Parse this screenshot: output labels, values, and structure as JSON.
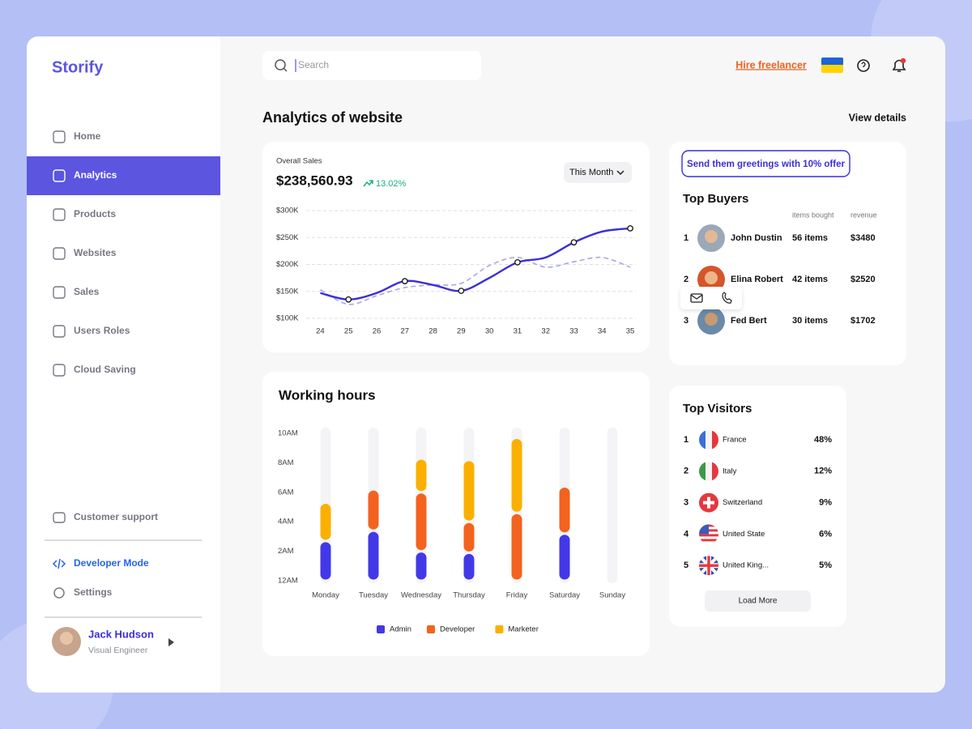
{
  "app": {
    "brand": "Storify"
  },
  "sidebar": {
    "nav": [
      "Home",
      "Analytics",
      "Products",
      "Websites",
      "Sales",
      "Users Roles",
      "Cloud Saving"
    ],
    "support": "Customer support",
    "developer_mode": "Developer Mode",
    "settings": "Settings",
    "user": {
      "name": "Jack Hudson",
      "role": "Visual Engineer"
    }
  },
  "header": {
    "search_placeholder": "Search",
    "hire": "Hire freelancer"
  },
  "page": {
    "title": "Analytics of website",
    "view_details": "View details"
  },
  "sales": {
    "label": "Overall Sales",
    "total": "$238,560.93",
    "change": "13.02%",
    "period": "This Month"
  },
  "chart_data": [
    {
      "type": "line",
      "x": [
        24,
        25,
        26,
        27,
        28,
        29,
        30,
        31,
        32,
        33,
        34,
        35
      ],
      "xlim": [
        23.7,
        35.2
      ],
      "ylim": [
        100000,
        300000
      ],
      "yticks": [
        {
          "value": 100000,
          "label": "$100K"
        },
        {
          "value": 150000,
          "label": "$150K"
        },
        {
          "value": 200000,
          "label": "$200K"
        },
        {
          "value": 250000,
          "label": "$250K"
        },
        {
          "value": 300000,
          "label": "$300K"
        }
      ],
      "grid": true,
      "series": [
        {
          "color": "#3b2fd9",
          "values": [
            147000,
            135000,
            147000,
            169000,
            162000,
            151000,
            175000,
            204000,
            213000,
            241000,
            261000,
            267000
          ]
        },
        {
          "color": "#a9a6e6",
          "dashed": true,
          "values": [
            153000,
            126000,
            142000,
            157000,
            162000,
            165000,
            198000,
            213000,
            195000,
            205000,
            213000,
            195000
          ]
        }
      ]
    },
    {
      "type": "bar",
      "stacked": true,
      "title": "Working hours",
      "categories": [
        "Monday",
        "Tuesday",
        "Wednesday",
        "Thursday",
        "Friday",
        "Saturday",
        "Sunday"
      ],
      "ylim": [
        0,
        10
      ],
      "yticks": [
        {
          "value": 0,
          "label": "12AM"
        },
        {
          "value": 2,
          "label": "2AM"
        },
        {
          "value": 4,
          "label": "4AM"
        },
        {
          "value": 6,
          "label": "6AM"
        },
        {
          "value": 8,
          "label": "8AM"
        },
        {
          "value": 10,
          "label": "10AM"
        }
      ],
      "series": [
        {
          "name": "Admin",
          "color": "#4338e8",
          "values": [
            2.7,
            3.4,
            2.0,
            1.9,
            0,
            3.2,
            0
          ]
        },
        {
          "name": "Developer",
          "color": "#f4621f",
          "values": [
            0,
            2.8,
            4.0,
            2.1,
            4.6,
            3.2,
            0
          ]
        },
        {
          "name": "Marketer",
          "color": "#fbb000",
          "values": [
            2.6,
            0,
            2.3,
            4.2,
            5.1,
            0,
            0
          ]
        }
      ]
    }
  ],
  "top_buyers": {
    "button": "Send them greetings with 10% offer",
    "title": "Top Buyers",
    "columns": [
      "items bought",
      "revenue"
    ],
    "rows": [
      [
        "1",
        "John Dustin",
        "56 items",
        "$3480"
      ],
      [
        "2",
        "Elina Robert",
        "42 items",
        "$2520"
      ],
      [
        "3",
        "Fed Bert",
        "30 items",
        "$1702"
      ]
    ]
  },
  "top_visitors": {
    "title": "Top Visitors",
    "rows": [
      [
        "1",
        "France",
        "48%"
      ],
      [
        "2",
        "Italy",
        "12%"
      ],
      [
        "3",
        "Switzerland",
        "9%"
      ],
      [
        "4",
        "United State",
        "6%"
      ],
      [
        "5",
        "United King...",
        "5%"
      ]
    ],
    "load_more": "Load More"
  }
}
